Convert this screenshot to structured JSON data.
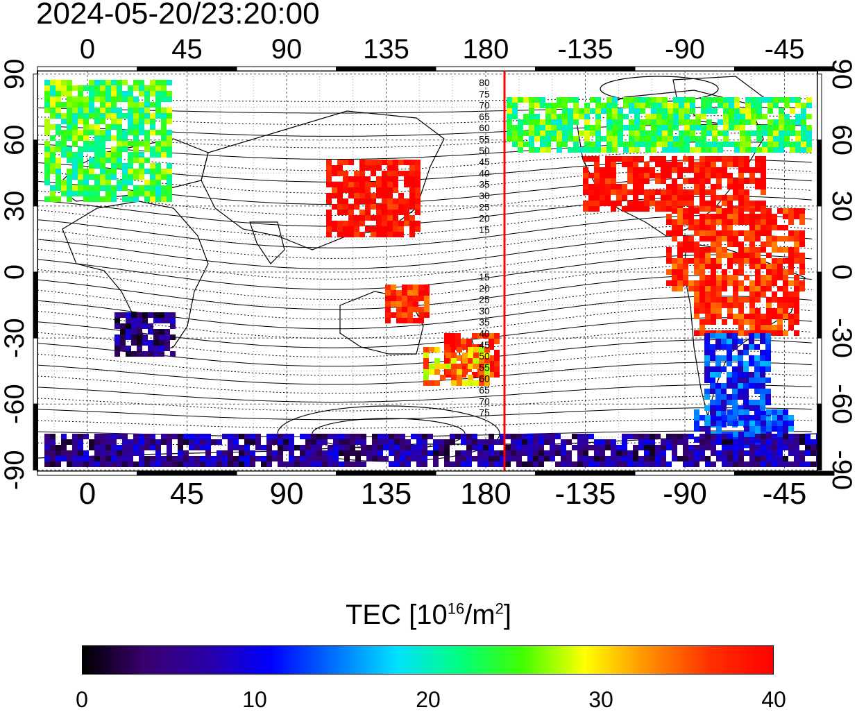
{
  "title": "2024-05-20/23:20:00",
  "map": {
    "top_longitude_labels": [
      "0",
      "45",
      "90",
      "135",
      "180",
      "-135",
      "-90",
      "-45"
    ],
    "bottom_longitude_labels": [
      "0",
      "45",
      "90",
      "135",
      "180",
      "-135",
      "-90",
      "-45"
    ],
    "left_latitude_labels": [
      "90",
      "60",
      "30",
      "0",
      "-30",
      "-60",
      "-90"
    ],
    "right_latitude_labels": [
      "90",
      "60",
      "30",
      "0",
      "-30",
      "-60",
      "-90"
    ],
    "magnetic_latitude_labels_north": [
      "80",
      "75",
      "70",
      "65",
      "60",
      "55",
      "50",
      "45",
      "40",
      "35",
      "30",
      "25",
      "20",
      "15"
    ],
    "magnetic_latitude_labels_south": [
      "15",
      "20",
      "25",
      "30",
      "35",
      "40",
      "45",
      "50",
      "55",
      "60",
      "65",
      "70",
      "75"
    ],
    "terminator_line_color": "#ff0000"
  },
  "colorbar": {
    "label_prefix": "TEC  [10",
    "label_exp1": "16",
    "label_mid": "/m",
    "label_exp2": "2",
    "label_suffix": "]",
    "ticks": [
      "0",
      "10",
      "20",
      "30",
      "40"
    ],
    "range": [
      0,
      40
    ],
    "colormap": [
      "#000000",
      "#3a0070",
      "#2a00a8",
      "#0000ff",
      "#0070ff",
      "#00e0ff",
      "#00ff80",
      "#40ff00",
      "#ffff00",
      "#ff9000",
      "#ff3000",
      "#ff0000"
    ]
  },
  "tec_regions": [
    {
      "name": "north-america",
      "value": 40
    },
    {
      "name": "south-america-north",
      "value": 38
    },
    {
      "name": "south-america-south",
      "value": 12
    },
    {
      "name": "arctic-north-america",
      "value": 24
    },
    {
      "name": "europe",
      "value": 24
    },
    {
      "name": "east-asia",
      "value": 40
    },
    {
      "name": "australia-east",
      "value": 38
    },
    {
      "name": "new-zealand",
      "value": 32
    },
    {
      "name": "southern-africa",
      "value": 5
    },
    {
      "name": "antarctica",
      "value": 6
    }
  ]
}
